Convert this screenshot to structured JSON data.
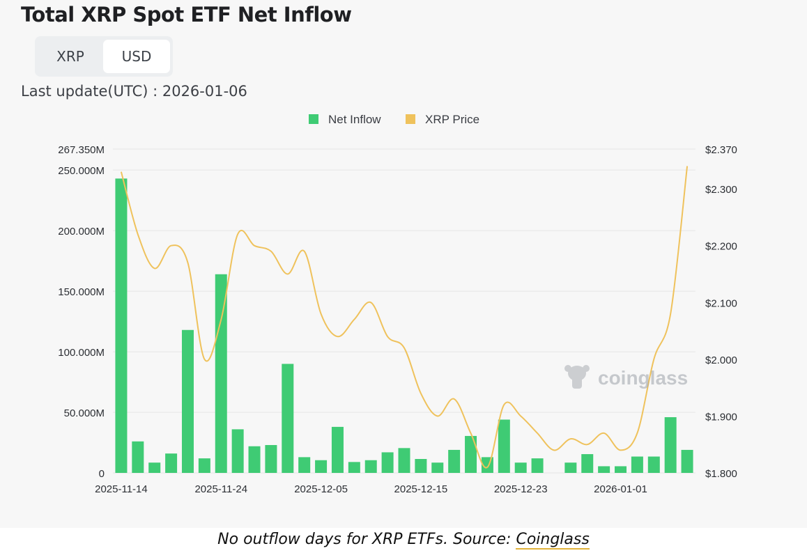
{
  "title": "Total XRP Spot ETF Net Inflow",
  "toggle": {
    "options": [
      "XRP",
      "USD"
    ],
    "selected": "USD"
  },
  "last_update": "Last update(UTC) : 2026-01-06",
  "watermark": "coinglass",
  "caption": {
    "text": "No outflow days for XRP ETFs. Source: ",
    "link_text": "Coinglass"
  },
  "colors": {
    "bar": "#3fcb74",
    "line": "#efc25c",
    "grid": "#e6e6e6"
  },
  "chart_data": {
    "type": "bar",
    "legend": [
      {
        "name": "Net Inflow",
        "color": "#3fcb74"
      },
      {
        "name": "XRP Price",
        "color": "#efc25c"
      }
    ],
    "legend_position": "top-center",
    "x_tick_labels": [
      "2025-11-14",
      "2025-11-24",
      "2025-12-05",
      "2025-12-15",
      "2025-12-23",
      "2026-01-01"
    ],
    "x_tick_indices": [
      0,
      6,
      12,
      18,
      24,
      30
    ],
    "left_axis": {
      "ticks": [
        0,
        50000000,
        100000000,
        150000000,
        200000000,
        250000000,
        267350000
      ],
      "tick_labels": [
        "0",
        "50.000M",
        "100.000M",
        "150.000M",
        "200.000M",
        "250.000M",
        "267.350M"
      ],
      "ylim": [
        0,
        267350000
      ]
    },
    "right_axis": {
      "ticks": [
        1.8,
        1.9,
        2.0,
        2.1,
        2.2,
        2.3,
        2.37
      ],
      "tick_labels": [
        "$1.800",
        "$1.900",
        "$2.000",
        "$2.100",
        "$2.200",
        "$2.300",
        "$2.370"
      ],
      "ylim": [
        1.8,
        2.37
      ]
    },
    "grid": true,
    "series": [
      {
        "name": "Net Inflow",
        "type": "bar",
        "axis": "left",
        "values": [
          243000000,
          26000000,
          8500000,
          16000000,
          118000000,
          12000000,
          164000000,
          36000000,
          22000000,
          23000000,
          90000000,
          13000000,
          10500000,
          38000000,
          9000000,
          10500000,
          17000000,
          20500000,
          11500000,
          8500000,
          19000000,
          30500000,
          13000000,
          44000000,
          8500000,
          12000000,
          null,
          8500000,
          15500000,
          5500000,
          5500000,
          13500000,
          13500000,
          46000000,
          19000000
        ]
      },
      {
        "name": "XRP Price",
        "type": "line",
        "axis": "right",
        "values": [
          2.33,
          2.22,
          2.16,
          2.2,
          2.17,
          2.0,
          2.07,
          2.22,
          2.2,
          2.19,
          2.15,
          2.19,
          2.08,
          2.04,
          2.07,
          2.1,
          2.04,
          2.02,
          1.94,
          1.9,
          1.93,
          1.87,
          1.81,
          1.92,
          1.9,
          1.87,
          1.84,
          1.86,
          1.85,
          1.87,
          1.84,
          1.87,
          2.0,
          2.08,
          2.34
        ]
      }
    ]
  }
}
